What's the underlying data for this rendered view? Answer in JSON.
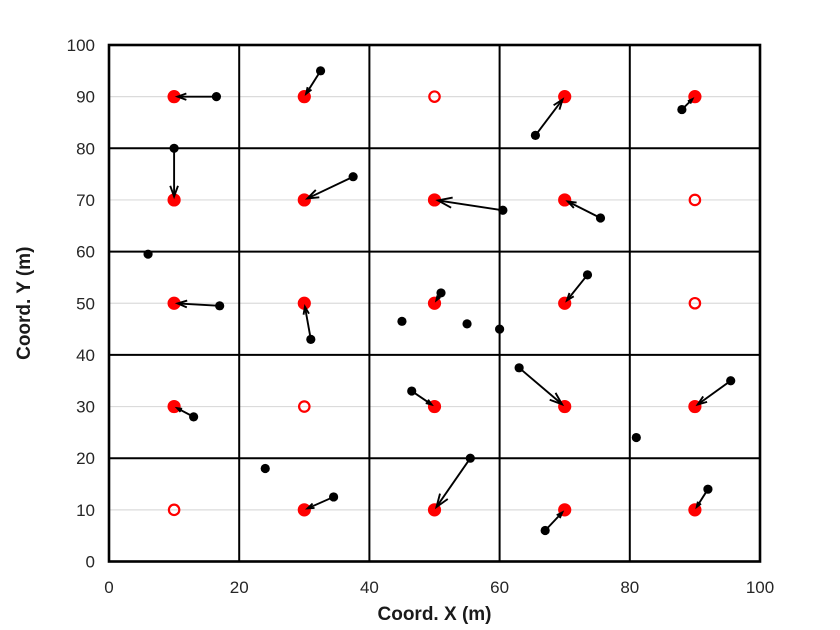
{
  "chart_data": {
    "type": "scatter",
    "title": "",
    "xlabel": "Coord. X (m)",
    "ylabel": "Coord. Y (m)",
    "xlim": [
      0,
      100
    ],
    "ylim": [
      0,
      100
    ],
    "xticks": [
      0,
      20,
      40,
      60,
      80,
      100
    ],
    "yticks": [
      0,
      10,
      20,
      30,
      40,
      50,
      60,
      70,
      80,
      90,
      100
    ],
    "cell_borders": [
      20,
      40,
      60,
      80
    ],
    "grid": "horizontal-light",
    "legend": "none",
    "colors": {
      "center": "#ff0000",
      "node": "#000000",
      "arrow": "#000000",
      "cell_border": "#000000",
      "grid_line": "#dbdbdb",
      "tick_label": "#262626",
      "axis_label": "#1a1a1a"
    },
    "centers_filled": [
      [
        10,
        90
      ],
      [
        30,
        90
      ],
      [
        70,
        90
      ],
      [
        90,
        90
      ],
      [
        10,
        70
      ],
      [
        30,
        70
      ],
      [
        50,
        70
      ],
      [
        70,
        70
      ],
      [
        10,
        50
      ],
      [
        30,
        50
      ],
      [
        50,
        50
      ],
      [
        70,
        50
      ],
      [
        10,
        30
      ],
      [
        50,
        30
      ],
      [
        70,
        30
      ],
      [
        90,
        30
      ],
      [
        30,
        10
      ],
      [
        50,
        10
      ],
      [
        70,
        10
      ],
      [
        90,
        10
      ]
    ],
    "centers_open": [
      [
        50,
        90
      ],
      [
        90,
        70
      ],
      [
        90,
        50
      ],
      [
        30,
        30
      ],
      [
        10,
        10
      ]
    ],
    "assignments": [
      {
        "from": [
          16.5,
          90
        ],
        "to": [
          10,
          90
        ]
      },
      {
        "from": [
          32.5,
          95
        ],
        "to": [
          30,
          90
        ]
      },
      {
        "from": [
          65.5,
          82.5
        ],
        "to": [
          70,
          90
        ]
      },
      {
        "from": [
          88,
          87.5
        ],
        "to": [
          90,
          90
        ]
      },
      {
        "from": [
          10,
          80
        ],
        "to": [
          10,
          70
        ]
      },
      {
        "from": [
          37.5,
          74.5
        ],
        "to": [
          30,
          70
        ]
      },
      {
        "from": [
          60.5,
          68
        ],
        "to": [
          50,
          70
        ]
      },
      {
        "from": [
          75.5,
          66.5
        ],
        "to": [
          70,
          70
        ]
      },
      {
        "from": [
          17,
          49.5
        ],
        "to": [
          10,
          50
        ]
      },
      {
        "from": [
          31,
          43
        ],
        "to": [
          30,
          50
        ]
      },
      {
        "from": [
          51,
          52
        ],
        "to": [
          50,
          50
        ]
      },
      {
        "from": [
          73.5,
          55.5
        ],
        "to": [
          70,
          50
        ]
      },
      {
        "from": [
          13,
          28
        ],
        "to": [
          10,
          30
        ]
      },
      {
        "from": [
          46.5,
          33
        ],
        "to": [
          50,
          30
        ]
      },
      {
        "from": [
          63,
          37.5
        ],
        "to": [
          70,
          30
        ]
      },
      {
        "from": [
          95.5,
          35
        ],
        "to": [
          90,
          30
        ]
      },
      {
        "from": [
          34.5,
          12.5
        ],
        "to": [
          30,
          10
        ]
      },
      {
        "from": [
          55.5,
          20
        ],
        "to": [
          50,
          10
        ]
      },
      {
        "from": [
          67,
          6
        ],
        "to": [
          70,
          10
        ]
      },
      {
        "from": [
          92,
          14
        ],
        "to": [
          90,
          10
        ]
      }
    ],
    "isolated_nodes": [
      [
        6,
        59.5
      ],
      [
        45,
        46.5
      ],
      [
        55,
        46
      ],
      [
        60,
        45
      ],
      [
        24,
        18
      ],
      [
        81,
        24
      ]
    ]
  }
}
